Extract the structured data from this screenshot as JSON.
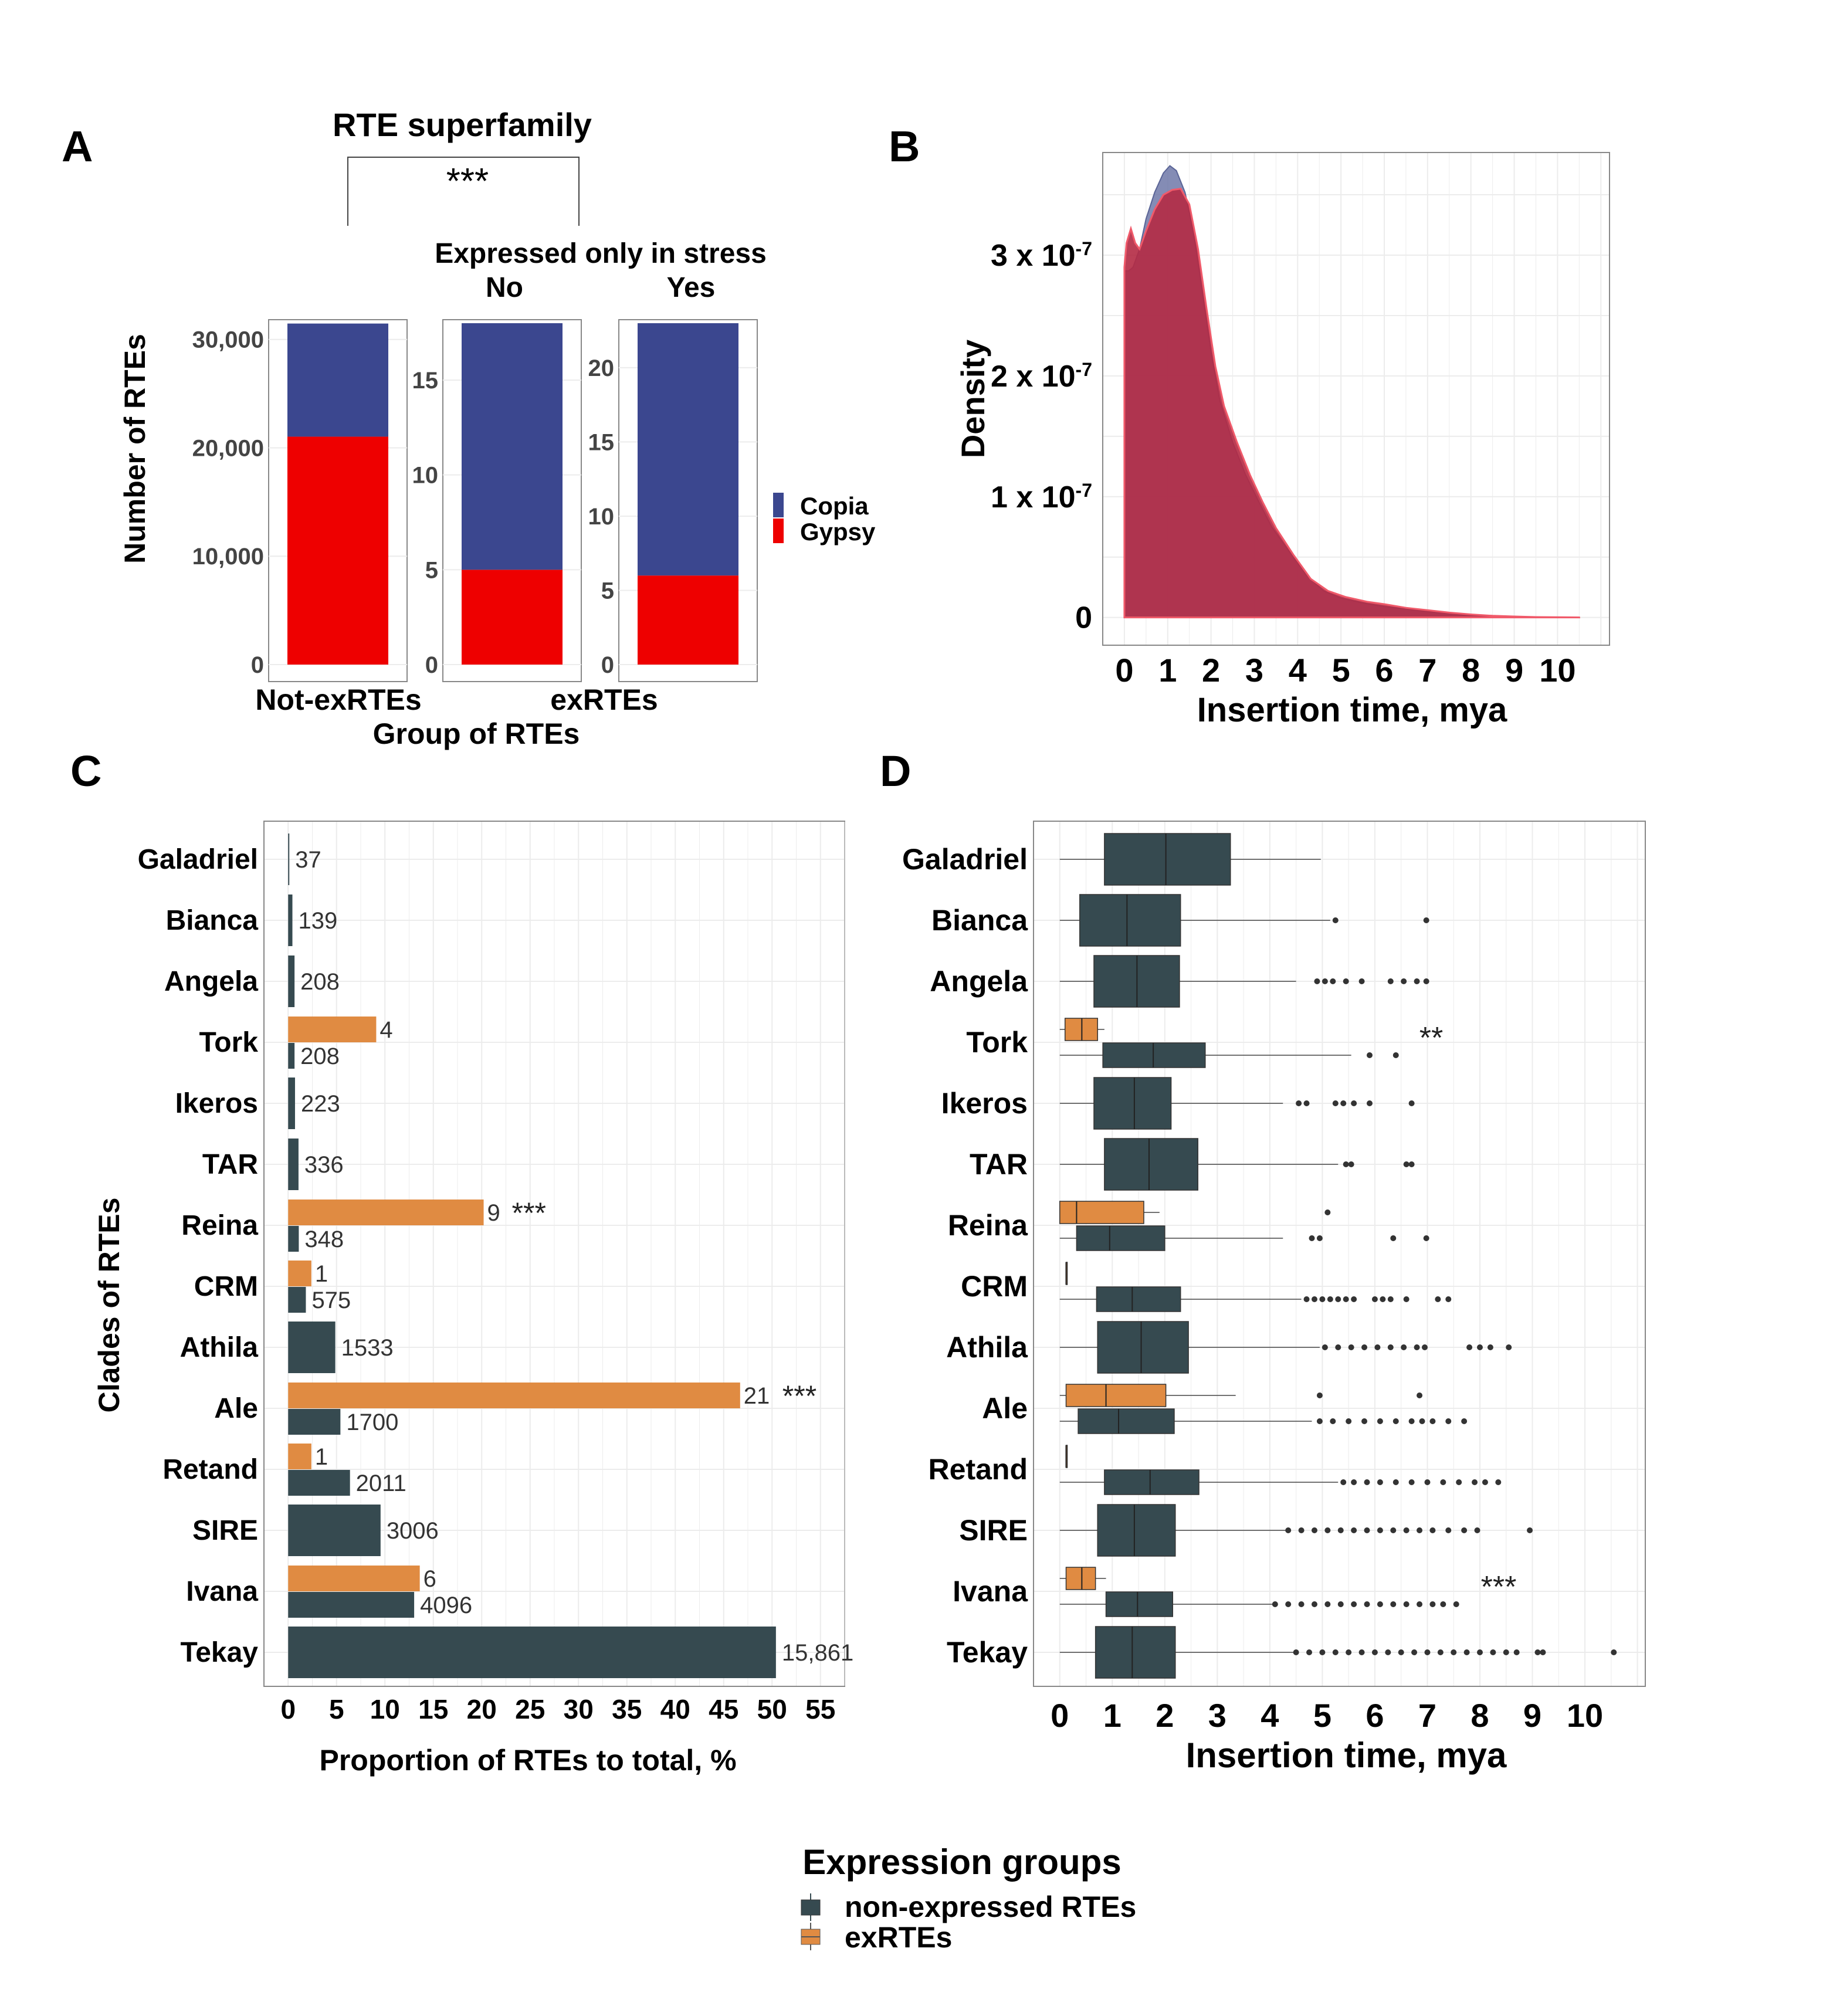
{
  "colors": {
    "copia": "#3b478f",
    "gypsy": "#ee0000",
    "dark": "#364a50",
    "orange": "#e08b42",
    "densCopia": "#6f78a8",
    "densGypsy": "#b42a44",
    "densGypsyEdge": "#f05a6a",
    "grid": "#ececec",
    "axis": "#333333",
    "panelBorder": "#888888"
  },
  "panel_letters": [
    "A",
    "B",
    "C",
    "D"
  ],
  "chart_data": [
    {
      "id": "A",
      "type": "bar",
      "stacked": true,
      "title": "RTE superfamily",
      "significance": "***",
      "facet_title": "Expressed only in stress",
      "xlabel": "Group of RTEs",
      "ylabel": "Number of RTEs",
      "group_labels": [
        "Not-exRTEs",
        "exRTEs"
      ],
      "legend": {
        "position": "right",
        "entries": [
          "Copia",
          "Gypsy"
        ]
      },
      "panels": [
        {
          "strip": "",
          "ymax": 31500,
          "ticks": [
            0,
            10000,
            20000,
            30000
          ],
          "tick_labels": [
            "0",
            "10,000",
            "20,000",
            "30,000"
          ],
          "total": 31468,
          "gypsy": 21030,
          "copia": 10438
        },
        {
          "strip": "No",
          "ymax": 18,
          "ticks": [
            0,
            5,
            10,
            15
          ],
          "tick_labels": [
            "0",
            "5",
            "10",
            "15"
          ],
          "total": 18,
          "gypsy": 5,
          "copia": 13
        },
        {
          "strip": "Yes",
          "ymax": 23,
          "ticks": [
            0,
            5,
            10,
            15,
            20
          ],
          "tick_labels": [
            "0",
            "5",
            "10",
            "15",
            "20"
          ],
          "total": 23,
          "gypsy": 6,
          "copia": 17
        }
      ]
    },
    {
      "id": "B",
      "type": "area",
      "xlabel": "Insertion time, mya",
      "ylabel": "Density",
      "xlim": [
        -0.5,
        11.2
      ],
      "ylim": [
        -2.3e-08,
        3.85e-07
      ],
      "x_ticks": [
        "0",
        "1",
        "2",
        "3",
        "4",
        "5",
        "6",
        "7",
        "8",
        "9",
        "10"
      ],
      "y_ticks": [
        {
          "value": 0,
          "base": "0",
          "exp": ""
        },
        {
          "value": 1e-07,
          "base": "1 x 10",
          "exp": "-7"
        },
        {
          "value": 2e-07,
          "base": "2 x 10",
          "exp": "-7"
        },
        {
          "value": 3e-07,
          "base": "3 x 10",
          "exp": "-7"
        }
      ],
      "series": [
        {
          "name": "Copia",
          "points": [
            [
              0,
              0.287
            ],
            [
              0.1,
              0.287
            ],
            [
              0.2,
              0.29
            ],
            [
              0.35,
              0.305
            ],
            [
              0.5,
              0.33
            ],
            [
              0.7,
              0.352
            ],
            [
              0.9,
              0.368
            ],
            [
              1.05,
              0.374
            ],
            [
              1.2,
              0.37
            ],
            [
              1.4,
              0.352
            ],
            [
              1.6,
              0.318
            ],
            [
              1.8,
              0.27
            ],
            [
              2.0,
              0.22
            ],
            [
              2.2,
              0.18
            ],
            [
              2.5,
              0.145
            ],
            [
              2.8,
              0.118
            ],
            [
              3.1,
              0.096
            ],
            [
              3.4,
              0.075
            ],
            [
              3.8,
              0.055
            ],
            [
              4.2,
              0.035
            ],
            [
              4.6,
              0.022
            ],
            [
              5.0,
              0.016
            ],
            [
              5.5,
              0.012
            ],
            [
              6.0,
              0.009
            ],
            [
              6.5,
              0.007
            ],
            [
              7.0,
              0.005
            ],
            [
              7.5,
              0.0035
            ],
            [
              8.0,
              0.002
            ],
            [
              8.5,
              0.0012
            ],
            [
              9.0,
              0.0007
            ],
            [
              9.5,
              0.0003
            ],
            [
              10.5,
              0
            ]
          ]
        },
        {
          "name": "Gypsy",
          "points": [
            [
              0,
              0.29
            ],
            [
              0.05,
              0.31
            ],
            [
              0.15,
              0.322
            ],
            [
              0.25,
              0.31
            ],
            [
              0.35,
              0.305
            ],
            [
              0.5,
              0.32
            ],
            [
              0.7,
              0.338
            ],
            [
              0.9,
              0.35
            ],
            [
              1.1,
              0.354
            ],
            [
              1.3,
              0.355
            ],
            [
              1.5,
              0.342
            ],
            [
              1.7,
              0.305
            ],
            [
              1.9,
              0.255
            ],
            [
              2.1,
              0.208
            ],
            [
              2.3,
              0.175
            ],
            [
              2.6,
              0.145
            ],
            [
              2.9,
              0.118
            ],
            [
              3.2,
              0.095
            ],
            [
              3.5,
              0.074
            ],
            [
              3.9,
              0.052
            ],
            [
              4.3,
              0.032
            ],
            [
              4.7,
              0.022
            ],
            [
              5.1,
              0.017
            ],
            [
              5.6,
              0.013
            ],
            [
              6.0,
              0.011
            ],
            [
              6.5,
              0.008
            ],
            [
              7.0,
              0.006
            ],
            [
              7.5,
              0.004
            ],
            [
              8.0,
              0.0025
            ],
            [
              8.5,
              0.0014
            ],
            [
              9.0,
              0.0008
            ],
            [
              9.5,
              0.0003
            ],
            [
              10.5,
              0
            ]
          ]
        }
      ],
      "y_scale_note": "point y values are in units of 1e-6"
    },
    {
      "id": "C",
      "type": "bar",
      "orientation": "horizontal",
      "xlabel": "Proportion of RTEs to total, %",
      "ylabel": "Clades of RTEs",
      "xlim": [
        -2.5,
        57.5
      ],
      "x_ticks": [
        "0",
        "5",
        "10",
        "15",
        "20",
        "25",
        "30",
        "35",
        "40",
        "45",
        "50",
        "55"
      ],
      "categories": [
        "Galadriel",
        "Bianca",
        "Angela",
        "Tork",
        "Ikeros",
        "TAR",
        "Reina",
        "CRM",
        "Athila",
        "Ale",
        "Retand",
        "SIRE",
        "Ivana",
        "Tekay"
      ],
      "series": [
        {
          "name": "non-expressed RTEs",
          "values": [
            0.12,
            0.44,
            0.66,
            0.66,
            0.71,
            1.07,
            1.1,
            1.83,
            4.87,
            5.4,
            6.39,
            9.55,
            13.02,
            50.4
          ],
          "labels": [
            "37",
            "139",
            "208",
            "208",
            "223",
            "336",
            "348",
            "575",
            "1533",
            "1700",
            "2011",
            "3006",
            "4096",
            "15,861"
          ]
        },
        {
          "name": "exRTEs",
          "values": [
            null,
            null,
            null,
            9.1,
            null,
            null,
            20.2,
            2.4,
            null,
            46.7,
            2.4,
            null,
            13.6,
            null
          ],
          "labels": [
            "",
            "",
            "",
            "4",
            "",
            "",
            "9",
            "1",
            "",
            "21",
            "1",
            "",
            "6",
            ""
          ],
          "stars": [
            "",
            "",
            "",
            "",
            "",
            "",
            "***",
            "",
            "",
            "***",
            "",
            "",
            "",
            ""
          ]
        }
      ]
    },
    {
      "id": "D",
      "type": "box",
      "xlabel": "Insertion time, mya",
      "xlim": [
        -0.5,
        11.15
      ],
      "x_ticks": [
        "0",
        "1",
        "2",
        "3",
        "4",
        "5",
        "6",
        "7",
        "8",
        "9",
        "10"
      ],
      "categories": [
        "Galadriel",
        "Bianca",
        "Angela",
        "Tork",
        "Ikeros",
        "TAR",
        "Reina",
        "CRM",
        "Athila",
        "Ale",
        "Retand",
        "SIRE",
        "Ivana",
        "Tekay"
      ],
      "non_expressed": [
        {
          "q1": 0.85,
          "med": 2.02,
          "q3": 3.25,
          "wlo": 0.0,
          "whi": 4.97,
          "out": []
        },
        {
          "q1": 0.38,
          "med": 1.28,
          "q3": 2.3,
          "wlo": 0.0,
          "whi": 5.15,
          "out": [
            5.25,
            6.98
          ]
        },
        {
          "q1": 0.65,
          "med": 1.47,
          "q3": 2.28,
          "wlo": 0.0,
          "whi": 4.5,
          "out": [
            4.9,
            5.05,
            5.2,
            5.45,
            5.75,
            6.3,
            6.55,
            6.8,
            6.98
          ]
        },
        {
          "q1": 0.82,
          "med": 1.78,
          "q3": 2.77,
          "wlo": 0.0,
          "whi": 5.55,
          "out": [
            5.9,
            6.4
          ]
        },
        {
          "q1": 0.65,
          "med": 1.42,
          "q3": 2.12,
          "wlo": 0.0,
          "whi": 4.25,
          "out": [
            4.55,
            4.7,
            5.25,
            5.4,
            5.6,
            5.9,
            6.7
          ]
        },
        {
          "q1": 0.85,
          "med": 1.7,
          "q3": 2.63,
          "wlo": 0.0,
          "whi": 5.3,
          "out": [
            5.45,
            5.55,
            6.6,
            6.7
          ]
        },
        {
          "q1": 0.32,
          "med": 0.95,
          "q3": 2.0,
          "wlo": 0.0,
          "whi": 4.25,
          "out": [
            4.8,
            4.95,
            6.35,
            6.98
          ]
        },
        {
          "q1": 0.7,
          "med": 1.38,
          "q3": 2.3,
          "wlo": 0.0,
          "whi": 4.6,
          "out": [
            4.7,
            4.85,
            5.0,
            5.15,
            5.3,
            5.45,
            5.6,
            6.0,
            6.15,
            6.3,
            6.6,
            7.2,
            7.4
          ]
        },
        {
          "q1": 0.72,
          "med": 1.55,
          "q3": 2.45,
          "wlo": 0.0,
          "whi": 4.95,
          "out": [
            5.05,
            5.3,
            5.55,
            5.8,
            6.05,
            6.3,
            6.55,
            6.8,
            6.95,
            7.8,
            8.0,
            8.2,
            8.55
          ]
        },
        {
          "q1": 0.35,
          "med": 1.12,
          "q3": 2.18,
          "wlo": 0.0,
          "whi": 4.8,
          "out": [
            4.95,
            5.2,
            5.5,
            5.8,
            6.1,
            6.4,
            6.7,
            6.9,
            7.1,
            7.4,
            7.7
          ]
        },
        {
          "q1": 0.85,
          "med": 1.72,
          "q3": 2.65,
          "wlo": 0.0,
          "whi": 5.3,
          "out": [
            5.4,
            5.6,
            5.85,
            6.1,
            6.4,
            6.7,
            7.0,
            7.3,
            7.6,
            7.9,
            8.1,
            8.35
          ]
        },
        {
          "q1": 0.72,
          "med": 1.42,
          "q3": 2.2,
          "wlo": 0.0,
          "whi": 4.3,
          "out": [
            4.35,
            4.6,
            4.85,
            5.1,
            5.35,
            5.6,
            5.85,
            6.1,
            6.35,
            6.6,
            6.85,
            7.1,
            7.4,
            7.7,
            7.95,
            8.95
          ]
        },
        {
          "q1": 0.88,
          "med": 1.48,
          "q3": 2.15,
          "wlo": 0.0,
          "whi": 4.05,
          "out": [
            4.1,
            4.35,
            4.6,
            4.85,
            5.1,
            5.35,
            5.6,
            5.85,
            6.1,
            6.35,
            6.6,
            6.85,
            7.1,
            7.3,
            7.55
          ]
        },
        {
          "q1": 0.68,
          "med": 1.38,
          "q3": 2.2,
          "wlo": 0.0,
          "whi": 4.45,
          "out": [
            4.5,
            4.75,
            5.0,
            5.25,
            5.5,
            5.75,
            6.0,
            6.25,
            6.5,
            6.75,
            7.0,
            7.25,
            7.5,
            7.75,
            8.0,
            8.25,
            8.5,
            8.7,
            9.1,
            9.2,
            10.55
          ]
        }
      ],
      "expressed": [
        null,
        null,
        null,
        {
          "q1": 0.1,
          "med": 0.42,
          "q3": 0.72,
          "wlo": 0.0,
          "whi": 0.85,
          "out": []
        },
        null,
        null,
        {
          "q1": 0.0,
          "med": 0.32,
          "q3": 1.6,
          "wlo": 0.0,
          "whi": 1.9,
          "out": [
            5.1
          ]
        },
        {
          "q1": 0.12,
          "med": 0.12,
          "q3": 0.12,
          "wlo": 0.12,
          "whi": 0.12,
          "out": []
        },
        null,
        {
          "q1": 0.12,
          "med": 0.88,
          "q3": 2.02,
          "wlo": 0.0,
          "whi": 3.35,
          "out": [
            4.95,
            6.85
          ]
        },
        {
          "q1": 0.12,
          "med": 0.12,
          "q3": 0.12,
          "wlo": 0.12,
          "whi": 0.12,
          "out": []
        },
        null,
        {
          "q1": 0.12,
          "med": 0.42,
          "q3": 0.68,
          "wlo": 0.0,
          "whi": 0.88,
          "out": []
        },
        null
      ],
      "stars": [
        "",
        "",
        "",
        "**",
        "",
        "",
        "",
        "",
        "",
        "",
        "",
        "",
        "***",
        ""
      ]
    }
  ],
  "legend": {
    "title": "Expression groups",
    "items": [
      {
        "label": "non-expressed RTEs",
        "color": "#364a50"
      },
      {
        "label": "exRTEs",
        "color": "#e08b42"
      }
    ]
  }
}
